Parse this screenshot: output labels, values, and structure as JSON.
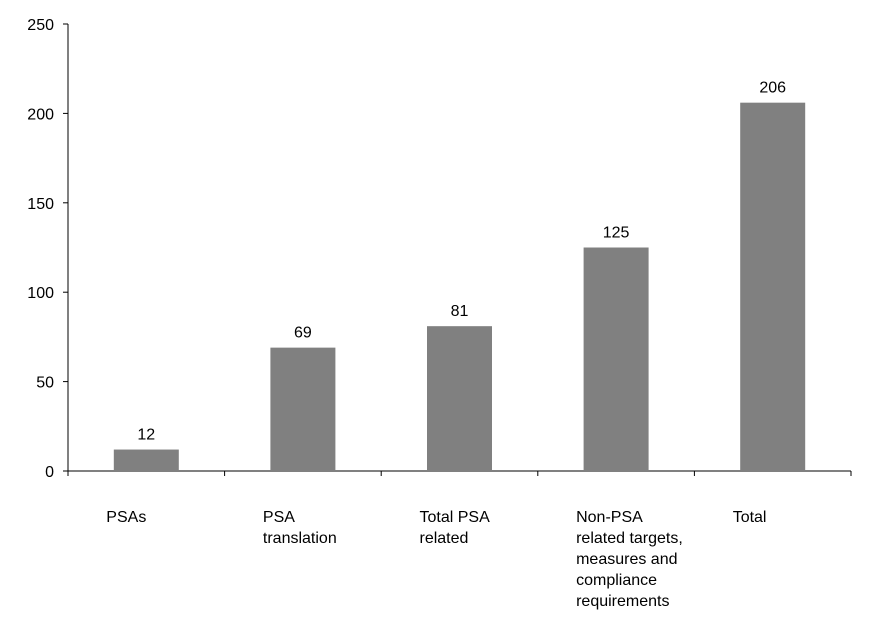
{
  "chart_data": {
    "type": "bar",
    "categories": [
      [
        "PSAs"
      ],
      [
        "PSA",
        "translation"
      ],
      [
        "Total PSA",
        "related"
      ],
      [
        "Non-PSA",
        "related targets,",
        "measures and",
        "compliance",
        "requirements"
      ],
      [
        "Total"
      ]
    ],
    "values": [
      12,
      69,
      81,
      125,
      206
    ],
    "data_labels": [
      "12",
      "69",
      "81",
      "125",
      "206"
    ],
    "yticks": [
      "0",
      "50",
      "100",
      "150",
      "200",
      "250"
    ],
    "ylim": [
      0,
      250
    ],
    "title": "",
    "xlabel": "",
    "ylabel": "",
    "grid": false,
    "bar_color": "#808080"
  }
}
